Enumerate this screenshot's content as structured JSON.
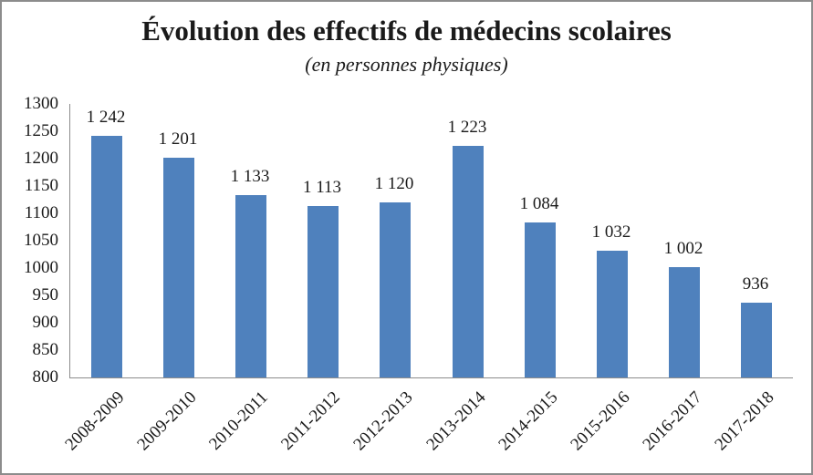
{
  "chart_data": {
    "type": "bar",
    "title": "Évolution des effectifs de médecins scolaires",
    "subtitle": "(en personnes physiques)",
    "categories": [
      "2008-2009",
      "2009-2010",
      "2010-2011",
      "2011-2012",
      "2012-2013",
      "2013-2014",
      "2014-2015",
      "2015-2016",
      "2016-2017",
      "2017-2018"
    ],
    "values": [
      1242,
      1201,
      1133,
      1113,
      1120,
      1223,
      1084,
      1032,
      1002,
      936
    ],
    "value_labels": [
      "1 242",
      "1 201",
      "1 133",
      "1 113",
      "1 120",
      "1 223",
      "1 084",
      "1 032",
      "1 002",
      "936"
    ],
    "xlabel": "",
    "ylabel": "",
    "ylim": [
      800,
      1300
    ],
    "ytick_step": 50,
    "ytick_labels": [
      "800",
      "850",
      "900",
      "950",
      "1000",
      "1050",
      "1100",
      "1150",
      "1200",
      "1250",
      "1300"
    ],
    "grid": false,
    "legend": false,
    "bar_color": "#4F81BD",
    "axis_color": "#8C8C8C",
    "text_color": "#1A1A1A",
    "border_color": "#8C8C8C"
  }
}
